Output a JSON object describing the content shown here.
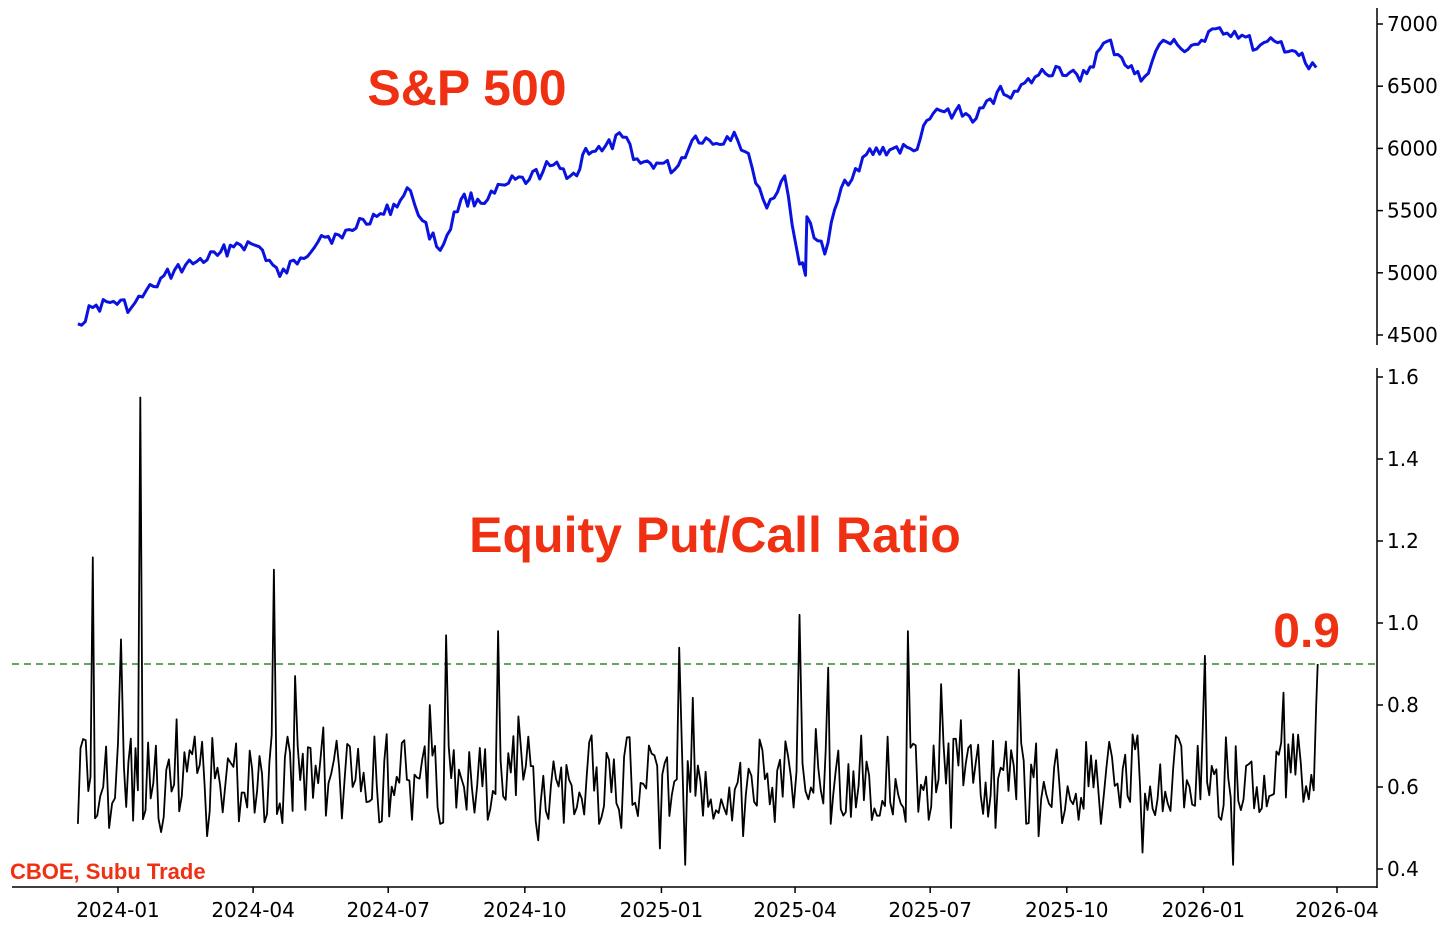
{
  "source_label": "CBOE, Subu Trade",
  "chart_data": [
    {
      "type": "line",
      "title": "S&P 500",
      "color": "#0a12e0",
      "y_axis_side": "right",
      "ylim": [
        4460,
        7110
      ],
      "yticks": [
        "4500",
        "5000",
        "5500",
        "6000",
        "6500",
        "7000"
      ],
      "series": [
        {
          "x": [
            "2023-12-05",
            "2023-12-15",
            "2023-12-29",
            "2024-01-10",
            "2024-01-25",
            "2024-02-08",
            "2024-02-23",
            "2024-03-08",
            "2024-03-21",
            "2024-04-05",
            "2024-04-19",
            "2024-05-03",
            "2024-05-17",
            "2024-05-31",
            "2024-06-14",
            "2024-06-28",
            "2024-07-16",
            "2024-07-24",
            "2024-08-05",
            "2024-08-19",
            "2024-09-06",
            "2024-09-20",
            "2024-10-04",
            "2024-10-18",
            "2024-11-05",
            "2024-11-11",
            "2024-11-22",
            "2024-12-06",
            "2024-12-18",
            "2024-12-31",
            "2025-01-10",
            "2025-01-24",
            "2025-02-07",
            "2025-02-19",
            "2025-03-03",
            "2025-03-13",
            "2025-03-25",
            "2025-04-04",
            "2025-04-08",
            "2025-04-09",
            "2025-04-21",
            "2025-05-02",
            "2025-05-19",
            "2025-06-06",
            "2025-06-20",
            "2025-07-03",
            "2025-07-18",
            "2025-08-01",
            "2025-08-15",
            "2025-08-29",
            "2025-09-12",
            "2025-09-26",
            "2025-10-10",
            "2025-10-28",
            "2025-11-07",
            "2025-11-20",
            "2025-12-05",
            "2025-12-17",
            "2026-01-02",
            "2026-01-12",
            "2026-01-27",
            "2026-02-06",
            "2026-02-20",
            "2026-03-04",
            "2026-03-13",
            "2026-03-18"
          ],
          "values": [
            4590,
            4720,
            4770,
            4720,
            4890,
            5020,
            5090,
            5140,
            5240,
            5210,
            4970,
            5120,
            5300,
            5280,
            5430,
            5470,
            5660,
            5420,
            5180,
            5590,
            5590,
            5720,
            5750,
            5860,
            5780,
            6000,
            5980,
            6090,
            5880,
            5880,
            5830,
            6100,
            6040,
            6130,
            5850,
            5520,
            5780,
            5070,
            4980,
            5450,
            5150,
            5680,
            5950,
            6000,
            5980,
            6280,
            6300,
            6240,
            6450,
            6460,
            6590,
            6650,
            6540,
            6860,
            6730,
            6540,
            6870,
            6800,
            6860,
            6970,
            6910,
            6800,
            6850,
            6780,
            6640,
            6650
          ]
        }
      ]
    },
    {
      "type": "line",
      "title": "Equity Put/Call Ratio",
      "color": "#000000",
      "y_axis_side": "right",
      "ylim": [
        0.36,
        1.62
      ],
      "yticks": [
        "0.4",
        "0.6",
        "0.8",
        "1.0",
        "1.2",
        "1.4",
        "1.6"
      ],
      "xlabels": [
        "2024-01",
        "2024-04",
        "2024-07",
        "2024-10",
        "2025-01",
        "2025-04",
        "2025-07",
        "2025-10",
        "2026-01",
        "2026-04"
      ],
      "reference_line": {
        "value": 0.9,
        "label": "0.9",
        "color": "#2a8a2a",
        "style": "dashed"
      },
      "series": [
        {
          "x": [
            "2023-12-05",
            "2023-12-12",
            "2023-12-15",
            "2023-12-18",
            "2023-12-22",
            "2023-12-26",
            "2023-12-28",
            "2024-01-03",
            "2024-01-05",
            "2024-01-08",
            "2024-01-16",
            "2024-01-30",
            "2024-02-20",
            "2024-03-01",
            "2024-03-15",
            "2024-03-28",
            "2024-04-12",
            "2024-04-15",
            "2024-04-19",
            "2024-05-01",
            "2024-05-20",
            "2024-06-07",
            "2024-06-20",
            "2024-07-05",
            "2024-07-17",
            "2024-07-29",
            "2024-08-05",
            "2024-08-09",
            "2024-08-21",
            "2024-09-06",
            "2024-09-13",
            "2024-09-25",
            "2024-10-10",
            "2024-10-22",
            "2024-11-05",
            "2024-11-20",
            "2024-12-05",
            "2024-12-18",
            "2024-12-31",
            "2025-01-08",
            "2025-01-13",
            "2025-01-17",
            "2025-01-29",
            "2025-02-12",
            "2025-02-25",
            "2025-03-10",
            "2025-03-20",
            "2025-03-31",
            "2025-04-04",
            "2025-04-08",
            "2025-04-10",
            "2025-04-25",
            "2025-05-12",
            "2025-05-28",
            "2025-06-13",
            "2025-06-16",
            "2025-06-30",
            "2025-07-15",
            "2025-07-30",
            "2025-08-14",
            "2025-08-28",
            "2025-09-12",
            "2025-09-26",
            "2025-10-09",
            "2025-10-24",
            "2025-11-06",
            "2025-11-21",
            "2025-12-08",
            "2025-12-19",
            "2025-12-30",
            "2026-01-02",
            "2026-01-05",
            "2026-01-13",
            "2026-01-21",
            "2026-01-28",
            "2026-02-06",
            "2026-02-16",
            "2026-02-24",
            "2026-03-04",
            "2026-03-13",
            "2026-03-18",
            "2026-03-19"
          ],
          "values": [
            0.51,
            0.59,
            1.16,
            0.53,
            0.6,
            0.5,
            0.56,
            0.96,
            0.65,
            0.66,
            1.55,
            0.49,
            0.68,
            0.48,
            0.67,
            0.55,
            0.66,
            1.13,
            0.56,
            0.7,
            0.53,
            0.6,
            0.57,
            0.58,
            0.52,
            0.8,
            0.51,
            0.97,
            0.6,
            0.52,
            0.98,
            0.58,
            0.47,
            0.62,
            0.55,
            0.51,
            0.5,
            0.61,
            0.45,
            0.58,
            0.94,
            0.41,
            0.53,
            0.55,
            0.48,
            0.69,
            0.64,
            0.55,
            1.02,
            0.59,
            0.57,
            0.51,
            0.55,
            0.53,
            0.55,
            0.98,
            0.52,
            0.5,
            0.61,
            0.5,
            0.57,
            0.48,
            0.61,
            0.52,
            0.51,
            0.55,
            0.44,
            0.56,
            0.55,
            0.57,
            0.92,
            0.58,
            0.52,
            0.41,
            0.57,
            0.6,
            0.58,
            0.83,
            0.63,
            0.57,
            0.8,
            0.9
          ]
        }
      ]
    }
  ]
}
